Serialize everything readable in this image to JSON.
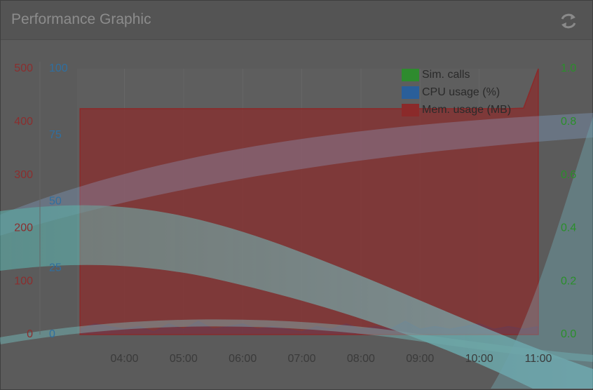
{
  "header": {
    "title": "Performance Graphic"
  },
  "chart_data": {
    "type": "line",
    "x": [
      3.25,
      3.5,
      3.75,
      4,
      4.25,
      4.5,
      4.75,
      5,
      5.25,
      5.5,
      5.75,
      6,
      6.25,
      6.5,
      6.75,
      7,
      7.25,
      7.5,
      7.75,
      8,
      8.25,
      8.5,
      8.75,
      9,
      9.25,
      9.5,
      9.75,
      10,
      10.25,
      10.5,
      10.75,
      11
    ],
    "xlim": [
      3.2,
      11.0
    ],
    "xticks": [
      {
        "value": 4,
        "label": "04:00"
      },
      {
        "value": 5,
        "label": "05:00"
      },
      {
        "value": 6,
        "label": "06:00"
      },
      {
        "value": 7,
        "label": "07:00"
      },
      {
        "value": 8,
        "label": "08:00"
      },
      {
        "value": 9,
        "label": "09:00"
      },
      {
        "value": 10,
        "label": "10:00"
      },
      {
        "value": 11,
        "label": "11:00"
      }
    ],
    "ylim": [
      0,
      500
    ],
    "yticks": [
      0,
      100,
      200,
      300,
      400,
      500
    ],
    "y2lim": [
      0,
      1.0
    ],
    "y2ticks": [
      {
        "value": 0,
        "label": "0.0"
      },
      0.2,
      0.4,
      0.6,
      0.8,
      {
        "value": 1,
        "label": "1.0"
      }
    ],
    "y3lim": [
      0,
      100
    ],
    "y3ticks": [
      0,
      25,
      50,
      75,
      100
    ],
    "series": [
      {
        "name": "Sim. calls",
        "color": "#2e8b2e",
        "axis": "y2",
        "values": [
          0,
          0,
          0,
          0,
          0,
          0,
          0,
          0,
          0,
          0,
          0,
          0,
          0,
          0,
          0,
          0,
          0,
          0,
          0,
          0,
          0,
          0,
          0,
          0,
          0,
          0,
          0,
          0,
          0,
          0,
          0,
          0
        ]
      },
      {
        "name": "CPU usage (%)",
        "color": "#2a5f9a",
        "axis": "y3",
        "values": [
          2,
          4,
          3,
          2,
          3,
          1,
          4,
          2,
          5,
          2,
          3,
          4,
          2,
          3,
          2,
          1,
          3,
          2,
          4,
          2,
          3,
          2,
          5,
          2,
          3,
          2,
          3,
          4,
          2,
          3,
          2,
          3
        ]
      },
      {
        "name": "Mem. usage (MB)",
        "color": "#8b2a2a",
        "values": [
          425,
          425,
          425,
          425,
          425,
          425,
          425,
          425,
          425,
          425,
          425,
          425,
          425,
          425,
          425,
          425,
          425,
          425,
          425,
          425,
          425,
          425,
          425,
          425,
          425,
          425,
          425,
          425,
          425,
          425,
          426,
          500
        ]
      }
    ]
  }
}
